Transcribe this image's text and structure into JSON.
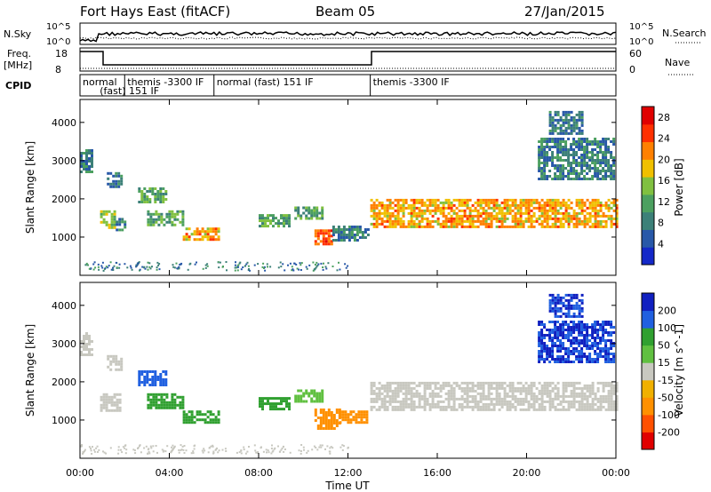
{
  "header": {
    "radar": "Fort Hays East (fitACF)",
    "beam": "Beam 05",
    "date": "27/Jan/2015"
  },
  "top_panels": {
    "nsky_label": "N.Sky",
    "nsky_ticks": [
      "10^5",
      "10^0"
    ],
    "nsearch_label": "N.Search",
    "nsearch_ticks": [
      "10^5",
      "10^0"
    ],
    "freq_label": "Freq.",
    "freq_unit": "[MHz]",
    "freq_ticks": [
      "18",
      "8"
    ],
    "nave_label": "Nave",
    "nave_ticks": [
      "60",
      "0"
    ],
    "cpid_label": "CPID"
  },
  "cpid_segments": [
    {
      "start": 0.0,
      "end": 2.0,
      "line1": "normal",
      "line2": ""
    },
    {
      "start": 2.0,
      "end": 6.0,
      "line1": "themis -3300  IF",
      "line2": "(fast) 151 IF"
    },
    {
      "start": 6.0,
      "end": 13.0,
      "line1": "normal (fast) 151 IF",
      "line2": ""
    },
    {
      "start": 13.0,
      "end": 24.0,
      "line1": "themis -3300  IF",
      "line2": ""
    }
  ],
  "colors": {
    "power": [
      "#1428c8",
      "#2858a8",
      "#3c8078",
      "#4ca060",
      "#80c040",
      "#f0c000",
      "#ff8000",
      "#ff3000",
      "#e00000"
    ],
    "velocity": [
      "#e00000",
      "#ff5000",
      "#ff9000",
      "#f0b000",
      "#c8c8c0",
      "#60c040",
      "#30a030",
      "#2060e0",
      "#1020c0"
    ]
  },
  "chart_data": [
    {
      "type": "heatmap",
      "name": "power",
      "xlabel": "Time UT",
      "ylabel": "Slant Range [km]",
      "xlim": [
        0,
        24
      ],
      "ylim": [
        0,
        4600
      ],
      "x_ticks": [
        "00:00",
        "04:00",
        "08:00",
        "12:00",
        "16:00",
        "20:00",
        "00:00"
      ],
      "y_ticks": [
        1000,
        2000,
        3000,
        4000
      ],
      "colorbar_label": "Power [dB]",
      "colorbar_ticks": [
        4,
        8,
        12,
        16,
        20,
        24,
        28
      ],
      "colorbar_range": [
        0,
        30
      ],
      "regions": [
        {
          "t0": 0.0,
          "t1": 0.5,
          "r0": 2700,
          "r1": 3300,
          "v": 8
        },
        {
          "t0": 0.9,
          "t1": 1.6,
          "r0": 1250,
          "r1": 1700,
          "v": 16
        },
        {
          "t0": 1.6,
          "t1": 2.0,
          "r0": 1200,
          "r1": 1500,
          "v": 8
        },
        {
          "t0": 1.2,
          "t1": 1.8,
          "r0": 2300,
          "r1": 2700,
          "v": 8
        },
        {
          "t0": 2.6,
          "t1": 3.8,
          "r0": 1900,
          "r1": 2300,
          "v": 12
        },
        {
          "t0": 3.0,
          "t1": 4.6,
          "r0": 1300,
          "r1": 1700,
          "v": 12
        },
        {
          "t0": 4.6,
          "t1": 6.2,
          "r0": 950,
          "r1": 1250,
          "v": 20
        },
        {
          "t0": 8.0,
          "t1": 9.4,
          "r0": 1300,
          "r1": 1600,
          "v": 12
        },
        {
          "t0": 9.6,
          "t1": 10.8,
          "r0": 1500,
          "r1": 1800,
          "v": 12
        },
        {
          "t0": 10.5,
          "t1": 11.3,
          "r0": 800,
          "r1": 1200,
          "v": 24
        },
        {
          "t0": 11.3,
          "t1": 12.9,
          "r0": 950,
          "r1": 1300,
          "v": 8
        },
        {
          "t0": 13.0,
          "t1": 24.0,
          "r0": 1300,
          "r1": 2000,
          "v": 20
        },
        {
          "t0": 20.5,
          "t1": 23.9,
          "r0": 2500,
          "r1": 3600,
          "v": 8
        },
        {
          "t0": 21.0,
          "t1": 22.5,
          "r0": 3700,
          "r1": 4300,
          "v": 8
        }
      ]
    },
    {
      "type": "heatmap",
      "name": "velocity",
      "xlabel": "Time UT",
      "ylabel": "Slant Range [km]",
      "xlim": [
        0,
        24
      ],
      "ylim": [
        0,
        4600
      ],
      "x_ticks": [
        "00:00",
        "04:00",
        "08:00",
        "12:00",
        "16:00",
        "20:00",
        "00:00"
      ],
      "y_ticks": [
        1000,
        2000,
        3000,
        4000
      ],
      "colorbar_label": "Velocity [m s^-1]",
      "colorbar_ticks": [
        "200",
        "100",
        "50",
        "15",
        "-15",
        "-50",
        "-100",
        "-200"
      ],
      "regions": [
        {
          "t0": 0.0,
          "t1": 0.5,
          "r0": 2700,
          "r1": 3300,
          "v": 0
        },
        {
          "t0": 0.9,
          "t1": 1.8,
          "r0": 1250,
          "r1": 1700,
          "v": 0
        },
        {
          "t0": 1.2,
          "t1": 1.8,
          "r0": 2300,
          "r1": 2700,
          "v": 0
        },
        {
          "t0": 2.6,
          "t1": 3.8,
          "r0": 1900,
          "r1": 2300,
          "v": 150
        },
        {
          "t0": 3.0,
          "t1": 4.6,
          "r0": 1300,
          "r1": 1700,
          "v": 60
        },
        {
          "t0": 4.6,
          "t1": 6.2,
          "r0": 950,
          "r1": 1250,
          "v": 60
        },
        {
          "t0": 8.0,
          "t1": 9.4,
          "r0": 1300,
          "r1": 1600,
          "v": 60
        },
        {
          "t0": 9.6,
          "t1": 10.8,
          "r0": 1500,
          "r1": 1800,
          "v": 40
        },
        {
          "t0": 10.5,
          "t1": 11.6,
          "r0": 800,
          "r1": 1300,
          "v": -60
        },
        {
          "t0": 11.6,
          "t1": 12.9,
          "r0": 950,
          "r1": 1250,
          "v": -60
        },
        {
          "t0": 13.0,
          "t1": 24.0,
          "r0": 1300,
          "r1": 2000,
          "v": 0
        },
        {
          "t0": 20.5,
          "t1": 23.9,
          "r0": 2500,
          "r1": 3600,
          "v": 200
        },
        {
          "t0": 21.0,
          "t1": 22.5,
          "r0": 3700,
          "r1": 4300,
          "v": 200
        }
      ]
    }
  ]
}
